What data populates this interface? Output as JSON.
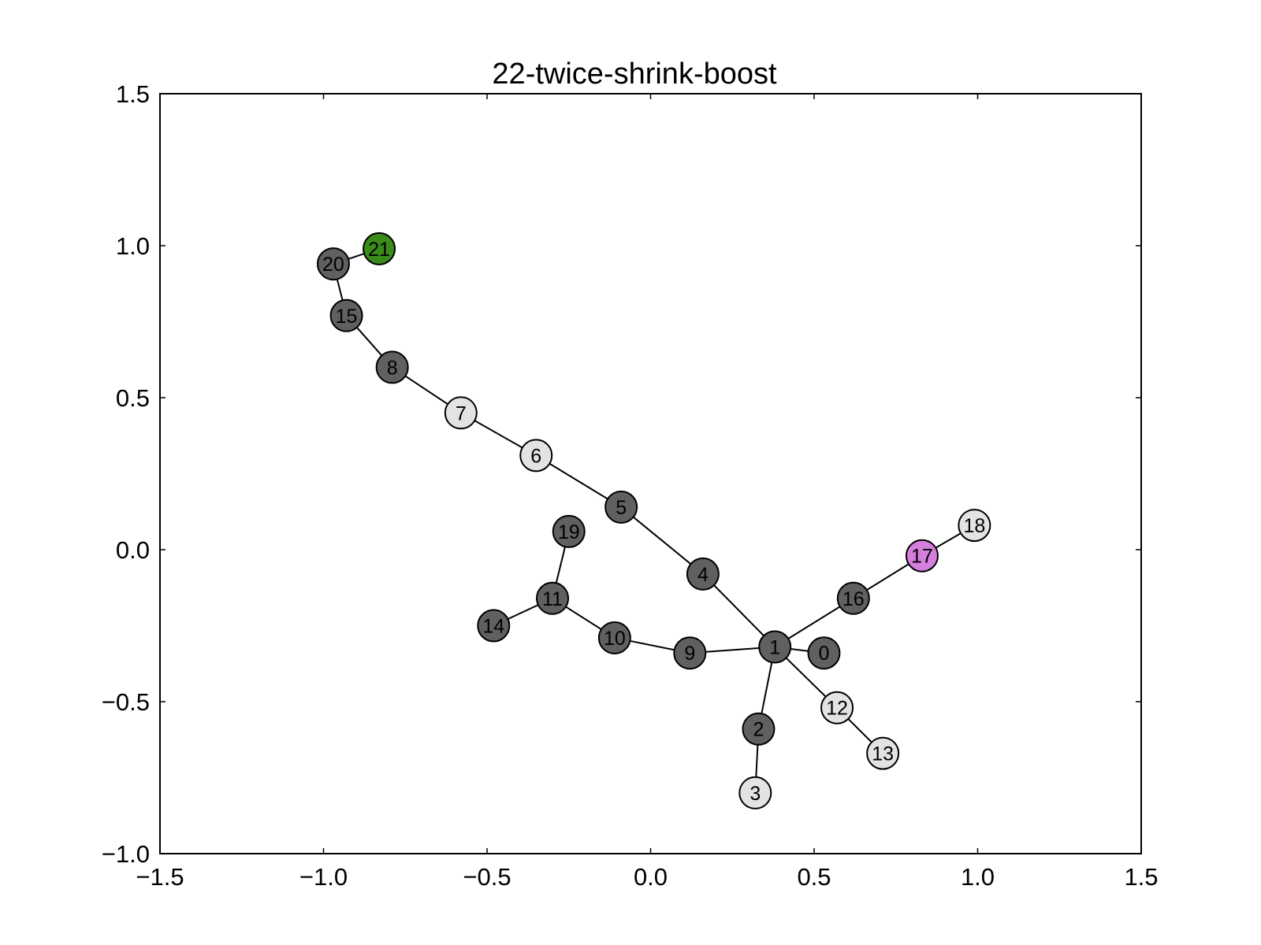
{
  "title": "22-twice-shrink-boost",
  "colors": {
    "dark": "#606060",
    "light": "#e3e3e3",
    "green": "#3a8a1c",
    "magenta": "#d57fdc"
  },
  "chart_data": {
    "type": "network",
    "title": "22-twice-shrink-boost",
    "xlim": [
      -1.5,
      1.5
    ],
    "ylim": [
      -1.0,
      1.5
    ],
    "x_ticks": [
      "−1.5",
      "−1.0",
      "−0.5",
      "0.0",
      "0.5",
      "1.0",
      "1.5"
    ],
    "x_tick_values": [
      -1.5,
      -1.0,
      -0.5,
      0.0,
      0.5,
      1.0,
      1.5
    ],
    "y_ticks": [
      "−1.0",
      "−0.5",
      "0.0",
      "0.5",
      "1.0",
      "1.5"
    ],
    "y_tick_values": [
      -1.0,
      -0.5,
      0.0,
      0.5,
      1.0,
      1.5
    ],
    "nodes": [
      {
        "id": "0",
        "x": 0.53,
        "y": -0.34,
        "color": "dark"
      },
      {
        "id": "1",
        "x": 0.38,
        "y": -0.32,
        "color": "dark"
      },
      {
        "id": "2",
        "x": 0.33,
        "y": -0.59,
        "color": "dark"
      },
      {
        "id": "3",
        "x": 0.32,
        "y": -0.8,
        "color": "light"
      },
      {
        "id": "4",
        "x": 0.16,
        "y": -0.08,
        "color": "dark"
      },
      {
        "id": "5",
        "x": -0.09,
        "y": 0.14,
        "color": "dark"
      },
      {
        "id": "6",
        "x": -0.35,
        "y": 0.31,
        "color": "light"
      },
      {
        "id": "7",
        "x": -0.58,
        "y": 0.45,
        "color": "light"
      },
      {
        "id": "8",
        "x": -0.79,
        "y": 0.6,
        "color": "dark"
      },
      {
        "id": "9",
        "x": 0.12,
        "y": -0.34,
        "color": "dark"
      },
      {
        "id": "10",
        "x": -0.11,
        "y": -0.29,
        "color": "dark"
      },
      {
        "id": "11",
        "x": -0.3,
        "y": -0.16,
        "color": "dark"
      },
      {
        "id": "12",
        "x": 0.57,
        "y": -0.52,
        "color": "light"
      },
      {
        "id": "13",
        "x": 0.71,
        "y": -0.67,
        "color": "light"
      },
      {
        "id": "14",
        "x": -0.48,
        "y": -0.25,
        "color": "dark"
      },
      {
        "id": "15",
        "x": -0.93,
        "y": 0.77,
        "color": "dark"
      },
      {
        "id": "16",
        "x": 0.62,
        "y": -0.16,
        "color": "dark"
      },
      {
        "id": "17",
        "x": 0.83,
        "y": -0.02,
        "color": "magenta"
      },
      {
        "id": "18",
        "x": 0.99,
        "y": 0.08,
        "color": "light"
      },
      {
        "id": "19",
        "x": -0.25,
        "y": 0.06,
        "color": "dark"
      },
      {
        "id": "20",
        "x": -0.97,
        "y": 0.94,
        "color": "dark"
      },
      {
        "id": "21",
        "x": -0.83,
        "y": 0.99,
        "color": "green"
      }
    ],
    "edges": [
      [
        "1",
        "0"
      ],
      [
        "1",
        "2"
      ],
      [
        "2",
        "3"
      ],
      [
        "1",
        "4"
      ],
      [
        "4",
        "5"
      ],
      [
        "5",
        "6"
      ],
      [
        "6",
        "7"
      ],
      [
        "7",
        "8"
      ],
      [
        "8",
        "15"
      ],
      [
        "15",
        "20"
      ],
      [
        "20",
        "21"
      ],
      [
        "1",
        "9"
      ],
      [
        "9",
        "10"
      ],
      [
        "10",
        "11"
      ],
      [
        "11",
        "14"
      ],
      [
        "11",
        "19"
      ],
      [
        "1",
        "12"
      ],
      [
        "12",
        "13"
      ],
      [
        "1",
        "16"
      ],
      [
        "16",
        "17"
      ],
      [
        "17",
        "18"
      ]
    ]
  }
}
